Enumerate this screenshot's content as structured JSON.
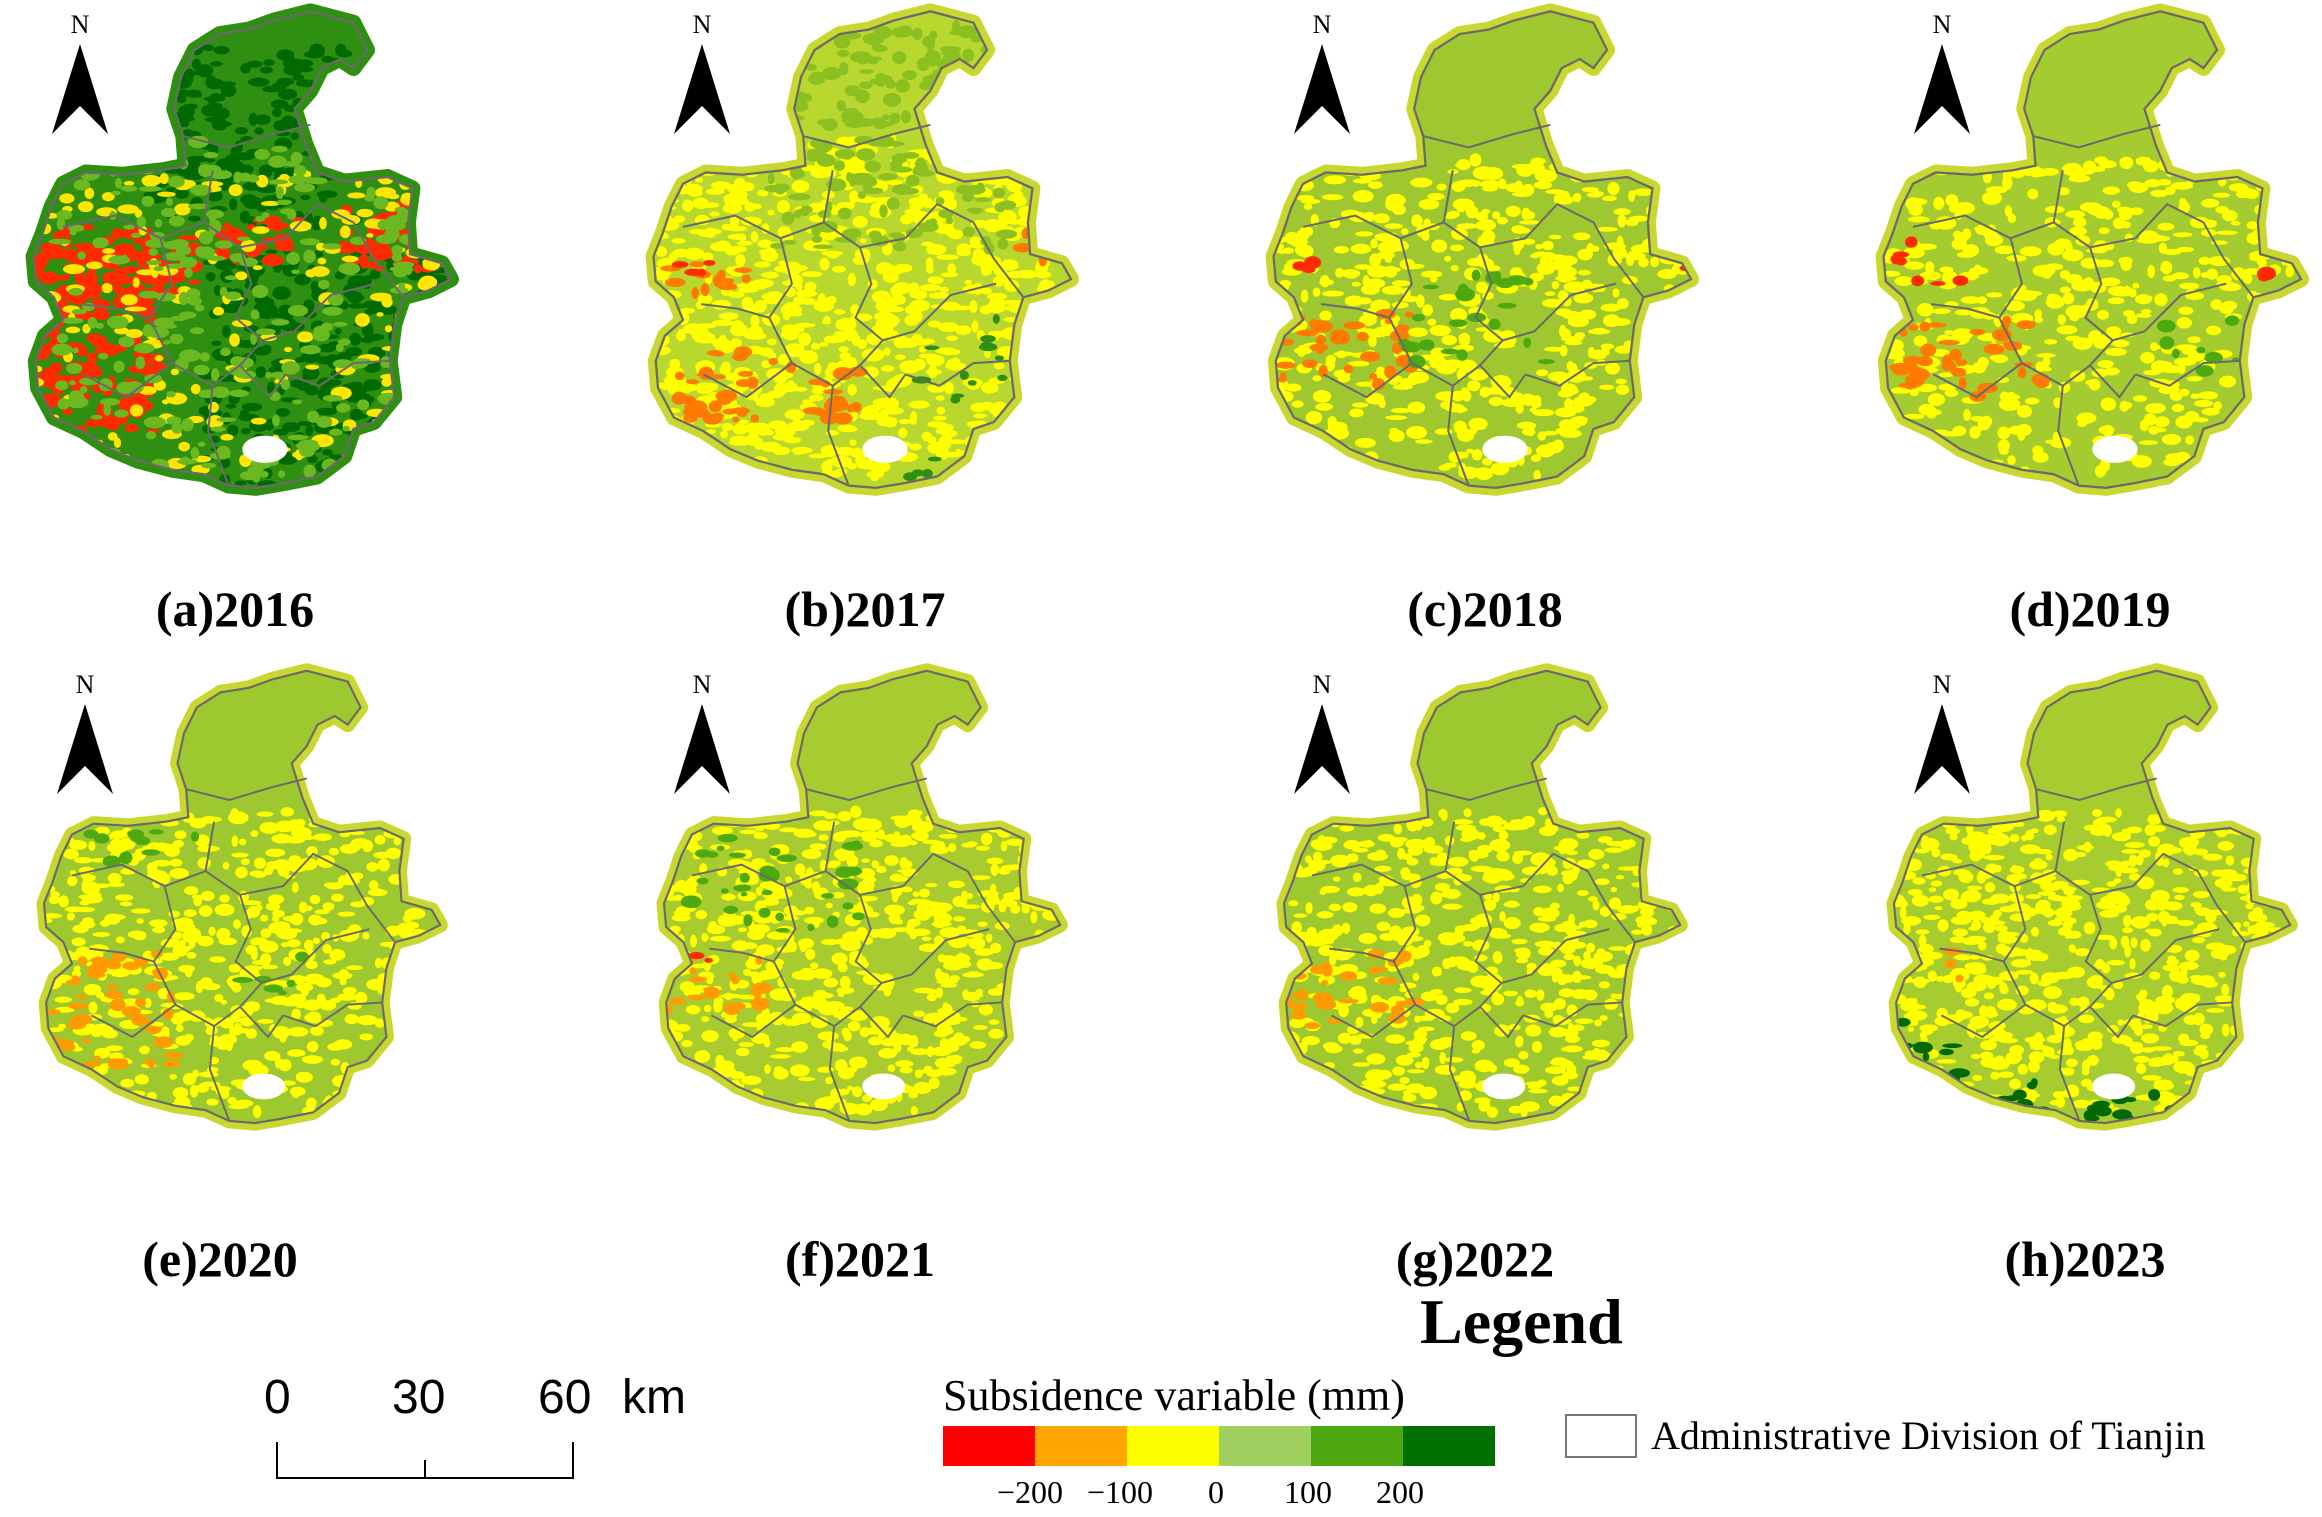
{
  "panels": [
    {
      "label": "(a)2016",
      "scheme": "2016"
    },
    {
      "label": "(b)2017",
      "scheme": "2017"
    },
    {
      "label": "(c)2018",
      "scheme": "2018"
    },
    {
      "label": "(d)2019",
      "scheme": "2019"
    },
    {
      "label": "(e)2020",
      "scheme": "2020"
    },
    {
      "label": "(f)2021",
      "scheme": "2021"
    },
    {
      "label": "(g)2022",
      "scheme": "2022"
    },
    {
      "label": "(h)2023",
      "scheme": "2023"
    }
  ],
  "north_label": "N",
  "legend": {
    "title": "Legend",
    "colorbar_title": "Subsidence variable (mm)",
    "colors": [
      "#ff0000",
      "#ffa500",
      "#ffff00",
      "#a0d060",
      "#4ea810",
      "#007000"
    ],
    "ticks": [
      "−200",
      "−100",
      "0",
      "100",
      "200"
    ],
    "boundary_label": "Administrative Division of Tianjin"
  },
  "scalebar": {
    "labels": [
      "0",
      "30",
      "60"
    ],
    "unit": "km"
  }
}
